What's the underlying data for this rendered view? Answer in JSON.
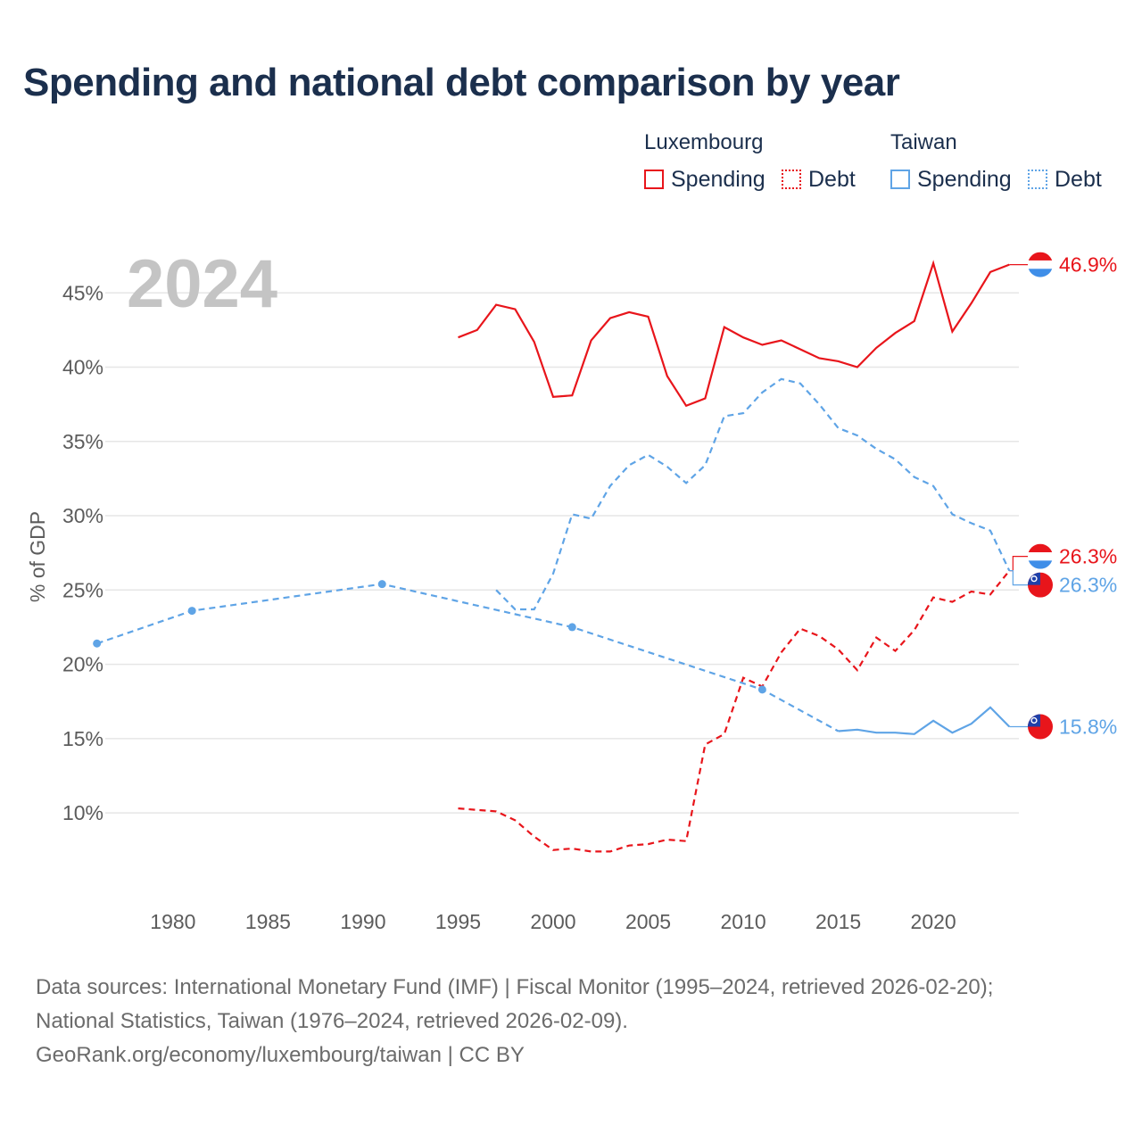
{
  "title": "Spending and national debt comparison by year",
  "legend": {
    "groups": [
      {
        "country": "Luxembourg",
        "color": "#e8151b",
        "items": [
          {
            "label": "Spending",
            "style": "solid"
          },
          {
            "label": "Debt",
            "style": "dotted"
          }
        ]
      },
      {
        "country": "Taiwan",
        "color": "#5fa4e6",
        "items": [
          {
            "label": "Spending",
            "style": "solid"
          },
          {
            "label": "Debt",
            "style": "dotted"
          }
        ]
      }
    ]
  },
  "sources": {
    "line1": "Data sources: International Monetary Fund (IMF) | Fiscal Monitor (1995–2024, retrieved 2026-02-20);",
    "line2": "National Statistics, Taiwan (1976–2024, retrieved 2026-02-09).",
    "line3": "GeoRank.org/economy/luxembourg/taiwan | CC BY"
  },
  "chart_data": {
    "type": "line",
    "year_watermark": "2024",
    "ylabel": "% of GDP",
    "xlabel": "",
    "xlim": [
      1975.5,
      2024.5
    ],
    "ylim": [
      4,
      50
    ],
    "x_ticks": [
      1980,
      1985,
      1990,
      1995,
      2000,
      2005,
      2010,
      2015,
      2020
    ],
    "y_ticks": [
      10,
      15,
      20,
      25,
      30,
      35,
      40,
      45
    ],
    "y_tick_labels": [
      "10%",
      "15%",
      "20%",
      "25%",
      "30%",
      "35%",
      "40%",
      "45%"
    ],
    "series": [
      {
        "name": "Luxembourg Spending",
        "country": "Luxembourg",
        "kind": "Spending",
        "color": "#e8151b",
        "style": "solid",
        "end_label": "46.9%",
        "flag": "luxembourg",
        "x": [
          1995,
          1996,
          1997,
          1998,
          1999,
          2000,
          2001,
          2002,
          2003,
          2004,
          2005,
          2006,
          2007,
          2008,
          2009,
          2010,
          2011,
          2012,
          2013,
          2014,
          2015,
          2016,
          2017,
          2018,
          2019,
          2020,
          2021,
          2022,
          2023,
          2024
        ],
        "values": [
          42.0,
          42.5,
          44.2,
          43.9,
          41.7,
          38.0,
          38.1,
          41.8,
          43.3,
          43.7,
          43.4,
          39.4,
          37.4,
          37.9,
          42.7,
          42.0,
          41.5,
          41.8,
          41.2,
          40.6,
          40.4,
          40.0,
          41.3,
          42.3,
          43.1,
          47.0,
          42.4,
          44.3,
          46.4,
          46.9
        ]
      },
      {
        "name": "Luxembourg Debt",
        "country": "Luxembourg",
        "kind": "Debt",
        "color": "#e8151b",
        "style": "dashed",
        "end_label": "26.3%",
        "flag": "luxembourg",
        "x": [
          1995,
          1996,
          1997,
          1998,
          1999,
          2000,
          2001,
          2002,
          2003,
          2004,
          2005,
          2006,
          2007,
          2008,
          2009,
          2010,
          2011,
          2012,
          2013,
          2014,
          2015,
          2016,
          2017,
          2018,
          2019,
          2020,
          2021,
          2022,
          2023,
          2024
        ],
        "values": [
          10.3,
          10.2,
          10.1,
          9.5,
          8.4,
          7.5,
          7.6,
          7.4,
          7.4,
          7.8,
          7.9,
          8.2,
          8.1,
          14.6,
          15.3,
          19.1,
          18.5,
          20.8,
          22.4,
          21.9,
          21.0,
          19.6,
          21.8,
          20.9,
          22.3,
          24.5,
          24.2,
          24.9,
          24.7,
          26.3
        ]
      },
      {
        "name": "Taiwan Spending",
        "country": "Taiwan",
        "kind": "Spending",
        "color": "#5fa4e6",
        "style": "solid",
        "end_label": "15.8%",
        "flag": "taiwan",
        "x": [
          1976,
          1981,
          1991,
          2001,
          2011,
          2015,
          2016,
          2017,
          2018,
          2019,
          2020,
          2021,
          2022,
          2023,
          2024
        ],
        "values": [
          21.4,
          23.6,
          25.4,
          22.5,
          18.3,
          15.5,
          15.6,
          15.4,
          15.4,
          15.3,
          16.2,
          15.4,
          16.0,
          17.1,
          15.8
        ],
        "dashed_until": 2015,
        "markers": [
          1976,
          1981,
          1991,
          2001,
          2011
        ]
      },
      {
        "name": "Taiwan Debt",
        "country": "Taiwan",
        "kind": "Debt",
        "color": "#5fa4e6",
        "style": "dashed",
        "end_label": "26.3%",
        "flag": "taiwan",
        "x": [
          1997,
          1998,
          1999,
          2000,
          2001,
          2002,
          2003,
          2004,
          2005,
          2006,
          2007,
          2008,
          2009,
          2010,
          2011,
          2012,
          2013,
          2014,
          2015,
          2016,
          2017,
          2018,
          2019,
          2020,
          2021,
          2022,
          2023,
          2024
        ],
        "values": [
          25.0,
          23.7,
          23.7,
          26.1,
          30.1,
          29.8,
          32.0,
          33.4,
          34.1,
          33.3,
          32.2,
          33.4,
          36.7,
          36.9,
          38.3,
          39.2,
          38.9,
          37.5,
          35.9,
          35.4,
          34.5,
          33.8,
          32.6,
          32.0,
          30.1,
          29.5,
          29.0,
          26.3
        ]
      }
    ]
  }
}
